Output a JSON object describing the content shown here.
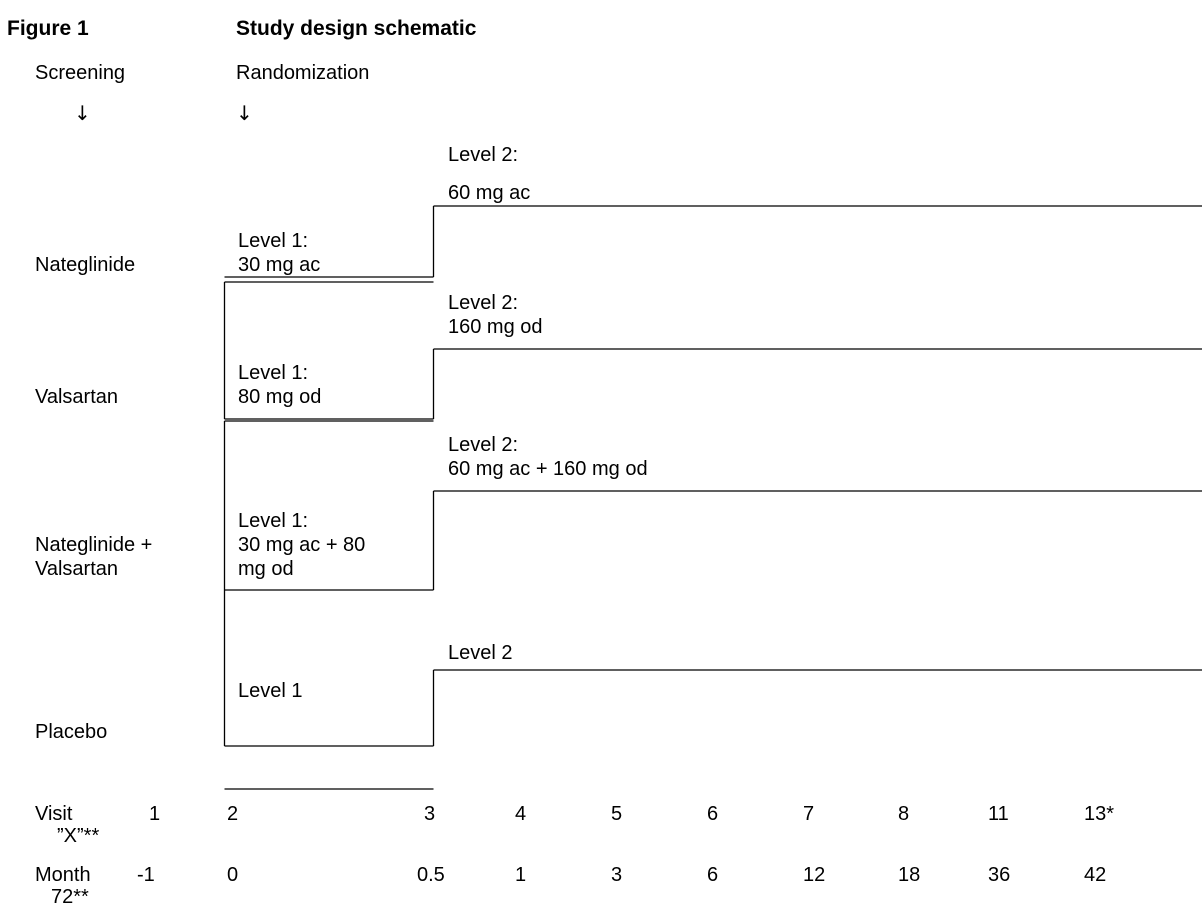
{
  "figure": {
    "label": "Figure 1",
    "title": "Study design schematic"
  },
  "phases": {
    "screening": "Screening",
    "randomization": "Randomization",
    "arrow": "↓"
  },
  "arms": [
    {
      "name": "Nateglinide",
      "level1": [
        "Level 1:",
        "30 mg ac"
      ],
      "level2": [
        "Level 2:",
        "60 mg ac"
      ]
    },
    {
      "name": "Valsartan",
      "level1": [
        "Level 1:",
        "80 mg od"
      ],
      "level2": [
        "Level 2:",
        "160 mg od"
      ]
    },
    {
      "name_lines": [
        "Nateglinide +",
        "Valsartan"
      ],
      "level1": [
        "Level 1:",
        "30 mg ac + 80",
        "mg od"
      ],
      "level2": [
        "Level 2:",
        "60 mg ac + 160 mg od"
      ]
    },
    {
      "name": "Placebo",
      "level1": [
        "Level 1"
      ],
      "level2": [
        "Level 2"
      ]
    }
  ],
  "timeline": {
    "visit_label": "Visit",
    "visit_first": "1",
    "visit_sub": "”X”**",
    "visits": [
      "2",
      "3",
      "4",
      "5",
      "6",
      "7",
      "8",
      "11",
      "13*"
    ],
    "month_label": "Month",
    "month_first": "-1",
    "month_sub": "72**",
    "months": [
      "0",
      "0.5",
      "1",
      "3",
      "6",
      "12",
      "18",
      "36",
      "42"
    ]
  }
}
